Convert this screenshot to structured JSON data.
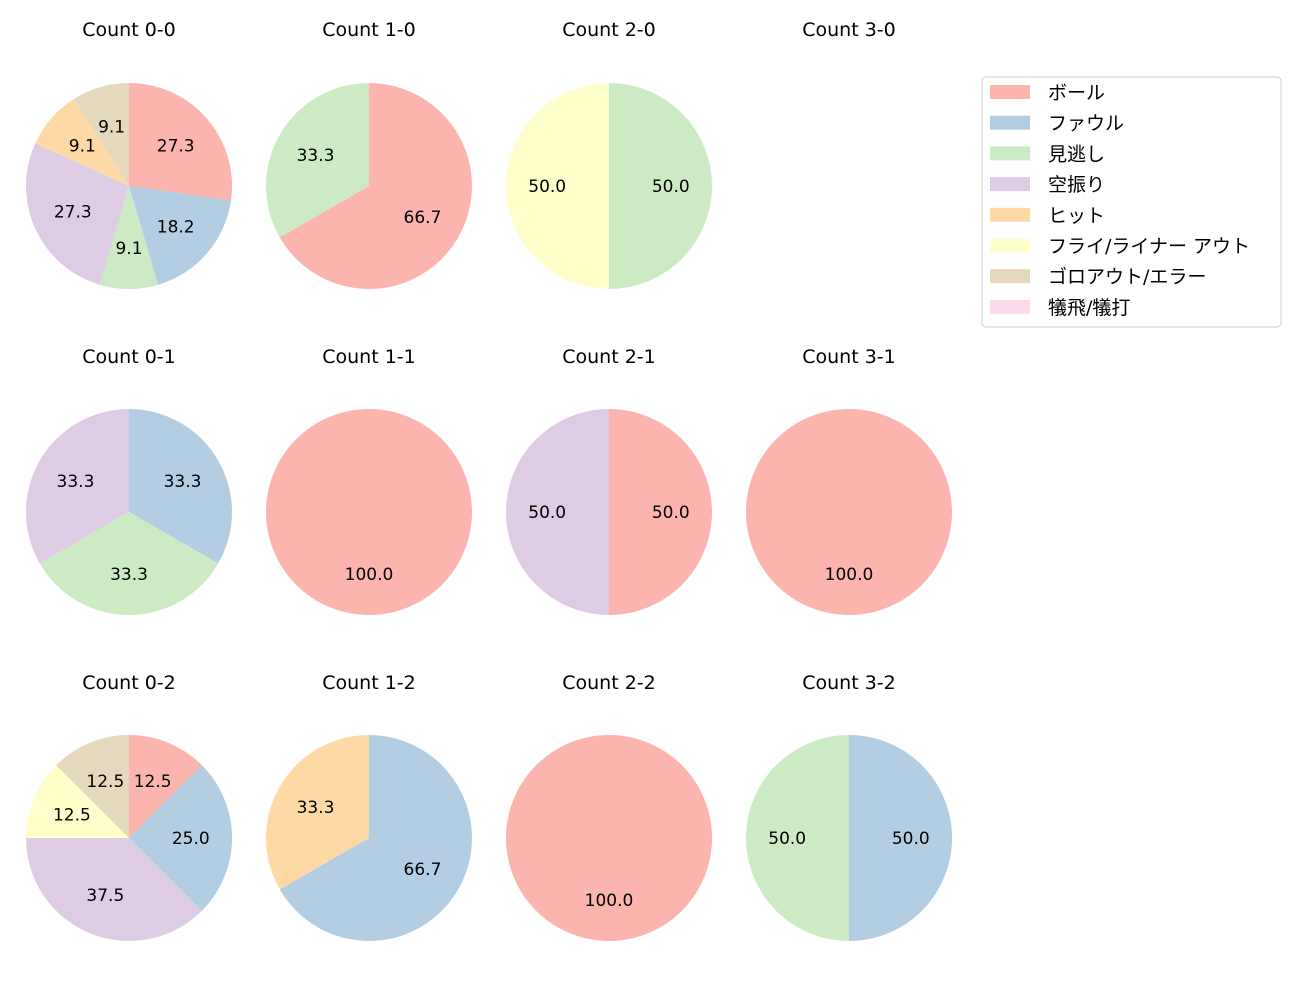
{
  "chart_data": [
    {
      "type": "pie",
      "title": "Count 0-0",
      "slices": [
        {
          "category": "ボール",
          "value": 27.3
        },
        {
          "category": "ファウル",
          "value": 18.2
        },
        {
          "category": "見逃し",
          "value": 9.1
        },
        {
          "category": "空振り",
          "value": 27.3
        },
        {
          "category": "ヒット",
          "value": 9.1
        },
        {
          "category": "ゴロアウト/エラー",
          "value": 9.1
        }
      ]
    },
    {
      "type": "pie",
      "title": "Count 1-0",
      "slices": [
        {
          "category": "ボール",
          "value": 66.7
        },
        {
          "category": "見逃し",
          "value": 33.3
        }
      ]
    },
    {
      "type": "pie",
      "title": "Count 2-0",
      "slices": [
        {
          "category": "見逃し",
          "value": 50.0
        },
        {
          "category": "フライ/ライナー アウト",
          "value": 50.0
        }
      ]
    },
    {
      "type": "pie",
      "title": "Count 3-0",
      "slices": []
    },
    {
      "type": "pie",
      "title": "Count 0-1",
      "slices": [
        {
          "category": "ファウル",
          "value": 33.3
        },
        {
          "category": "見逃し",
          "value": 33.3
        },
        {
          "category": "空振り",
          "value": 33.3
        }
      ]
    },
    {
      "type": "pie",
      "title": "Count 1-1",
      "slices": [
        {
          "category": "ボール",
          "value": 100.0
        }
      ]
    },
    {
      "type": "pie",
      "title": "Count 2-1",
      "slices": [
        {
          "category": "ボール",
          "value": 50.0
        },
        {
          "category": "空振り",
          "value": 50.0
        }
      ]
    },
    {
      "type": "pie",
      "title": "Count 3-1",
      "slices": [
        {
          "category": "ボール",
          "value": 100.0
        }
      ]
    },
    {
      "type": "pie",
      "title": "Count 0-2",
      "slices": [
        {
          "category": "ボール",
          "value": 12.5
        },
        {
          "category": "ファウル",
          "value": 25.0
        },
        {
          "category": "空振り",
          "value": 37.5
        },
        {
          "category": "フライ/ライナー アウト",
          "value": 12.5
        },
        {
          "category": "ゴロアウト/エラー",
          "value": 12.5
        }
      ]
    },
    {
      "type": "pie",
      "title": "Count 1-2",
      "slices": [
        {
          "category": "ファウル",
          "value": 66.7
        },
        {
          "category": "ヒット",
          "value": 33.3
        }
      ]
    },
    {
      "type": "pie",
      "title": "Count 2-2",
      "slices": [
        {
          "category": "ボール",
          "value": 100.0
        }
      ]
    },
    {
      "type": "pie",
      "title": "Count 3-2",
      "slices": [
        {
          "category": "ファウル",
          "value": 50.0
        },
        {
          "category": "見逃し",
          "value": 50.0
        }
      ]
    }
  ],
  "legend": {
    "placement": "top-right",
    "entries": [
      {
        "label": "ボール",
        "color": "#fbb4ae"
      },
      {
        "label": "ファウル",
        "color": "#b3cde3"
      },
      {
        "label": "見逃し",
        "color": "#ccebc5"
      },
      {
        "label": "空振り",
        "color": "#decbe4"
      },
      {
        "label": "ヒット",
        "color": "#fed9a6"
      },
      {
        "label": "フライ/ライナー アウト",
        "color": "#ffffcc"
      },
      {
        "label": "ゴロアウト/エラー",
        "color": "#e5d8bd"
      },
      {
        "label": "犠飛/犠打",
        "color": "#fddaec"
      }
    ]
  }
}
